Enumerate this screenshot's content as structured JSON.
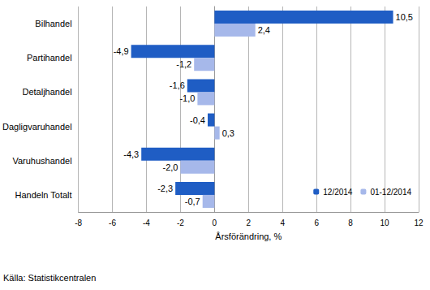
{
  "chart_data": {
    "type": "bar",
    "orientation": "horizontal",
    "categories": [
      "Bilhandel",
      "Partihandel",
      "Detaljhandel",
      "Dagligvaruhandel",
      "Varuhushandel",
      "Handeln Totalt"
    ],
    "series": [
      {
        "name": "12/2014",
        "color": "#1f5dc4",
        "values": [
          10.5,
          -4.9,
          -1.6,
          -0.4,
          -4.3,
          -2.3
        ],
        "value_labels": [
          "10,5",
          "-4,9",
          "-1,6",
          "-0,4",
          "-4,3",
          "-2,3"
        ]
      },
      {
        "name": "01-12/2014",
        "color": "#a6b8ea",
        "values": [
          2.4,
          -1.2,
          -1.0,
          0.3,
          -2.0,
          -0.7
        ],
        "value_labels": [
          "2,4",
          "-1,2",
          "-1,0",
          "0,3",
          "-2,0",
          "-0,7"
        ]
      }
    ],
    "x_label": "Årsförändring, %",
    "xlim": [
      -8,
      12
    ],
    "xticks": [
      -8,
      -6,
      -4,
      -2,
      0,
      2,
      4,
      6,
      8,
      10,
      12
    ],
    "grid": true,
    "legend": "lower right",
    "data_labels": true,
    "annotations": [
      "Källa: Statistikcentralen"
    ]
  }
}
